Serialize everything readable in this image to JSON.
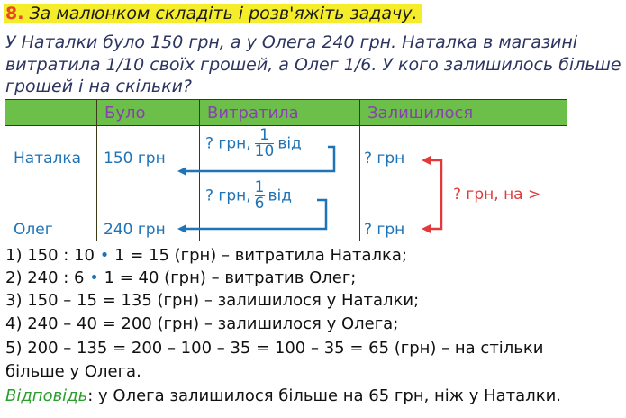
{
  "task": {
    "number": "8.",
    "title": "За малюнком складіть і розв'яжіть задачу."
  },
  "condition": [
    "У Наталки було 150 грн, а у Олега 240 грн. Наталка в магазині",
    "витратила 1/10 своїх грошей, а Олег 1/6. У кого залишилось більше",
    "грошей і на скільки?"
  ],
  "table": {
    "headers": [
      "",
      "Було",
      "Витратила",
      "Залишилося"
    ],
    "rows": [
      {
        "name": "Наталка",
        "had": "150 грн",
        "spent_prefix": "? грн,",
        "spent_num": "1",
        "spent_den": "10",
        "spent_suffix": "від",
        "left": "? грн"
      },
      {
        "name": "Олег",
        "had": "240 грн",
        "spent_prefix": "? грн,",
        "spent_num": "1",
        "spent_den": "6",
        "spent_suffix": "від",
        "left": "? грн"
      }
    ],
    "compare": "? грн, на >",
    "colors": {
      "header": "#6cc04a",
      "header_text": "#8a3fb0",
      "values": "#1f73b7",
      "compare": "#e23a3a"
    }
  },
  "solution": [
    {
      "a": "1) 150 : 10 ",
      "b": "•",
      "c": " 1 = 15 (грн) – витратила Наталка;"
    },
    {
      "a": "2) 240 : 6 ",
      "b": "•",
      "c": " 1 = 40 (грн) – витратив Олег;"
    },
    {
      "a": "3) 150 – 15 = 135 (грн) – залишилося у Наталки;"
    },
    {
      "a": "4) 240 – 40 = 200 (грн) – залишилося у Олега;"
    },
    {
      "a": "5) 200 – 135 = 200 – 100 – 35 = 100 – 35 = 65 (грн) – на стільки"
    },
    {
      "a": "більше у Олега."
    }
  ],
  "answer": {
    "label": "Відповідь",
    "text": ": у Олега залишилося більше на 65 грн, ніж у Наталки."
  }
}
